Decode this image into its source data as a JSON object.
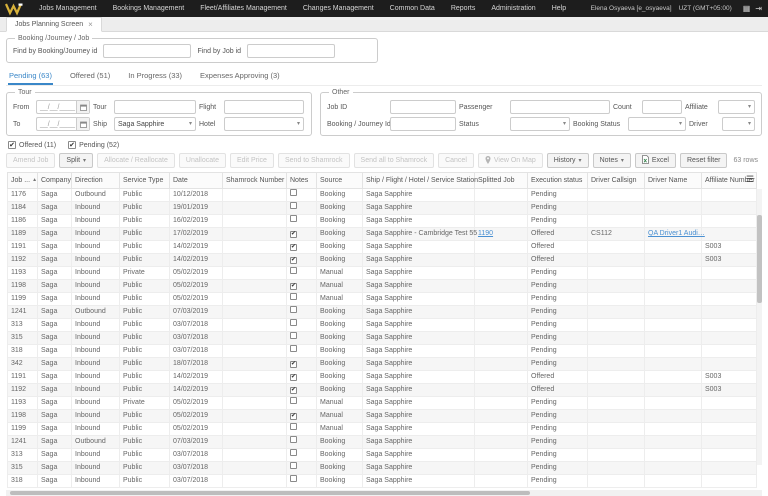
{
  "colors": {
    "topbar": "#1d1d1d",
    "accent_blue": "#3a87c8",
    "link_blue": "#4a90d2",
    "logo_gold": "#d8b23a"
  },
  "topnav": {
    "menu": [
      "Jobs Management",
      "Bookings Management",
      "Fleet/Affiliates Management",
      "Changes Management",
      "Common Data",
      "Reports",
      "Administration",
      "Help"
    ],
    "user": "Elena Osyaeva [e_osyaeva]",
    "timezone": "UZT (GMT+05:00)"
  },
  "tab_bar": {
    "active_tab": "Jobs Planning Screen",
    "close_glyph": "×"
  },
  "search_box": {
    "legend": "Booking /Journey / Job",
    "booking_label": "Find by Booking/Journey id",
    "job_label": "Find by Job id",
    "booking_value": "",
    "job_value": ""
  },
  "status_tabs": [
    {
      "label": "Pending (63)",
      "active": true
    },
    {
      "label": "Offered (51)",
      "active": false
    },
    {
      "label": "In Progress (33)",
      "active": false
    },
    {
      "label": "Expenses Approving (3)",
      "active": false
    }
  ],
  "tour_filter": {
    "legend": "Tour",
    "from_label": "From",
    "to_label": "To",
    "date_placeholder": "__/__/____",
    "from_value": "",
    "to_value": "",
    "tour_label": "Tour",
    "tour_value": "",
    "flight_label": "Flight",
    "flight_value": "",
    "ship_label": "Ship",
    "ship_value": "Saga Sapphire",
    "hotel_label": "Hotel",
    "hotel_value": ""
  },
  "other_filter": {
    "legend": "Other",
    "job_id_label": "Job ID",
    "job_id_value": "",
    "passenger_label": "Passenger",
    "passenger_value": "",
    "count_label": "Count",
    "count_value": "",
    "affiliate_label": "Affiliate",
    "affiliate_value": "",
    "booking_journey_label": "Booking / Journey Id",
    "booking_journey_value": "",
    "status_label": "Status",
    "status_value": "",
    "booking_status_label": "Booking Status",
    "booking_status_value": "",
    "driver_label": "Driver",
    "driver_value": ""
  },
  "filter_checkboxes": [
    {
      "label": "Offered (11)",
      "checked": true
    },
    {
      "label": "Pending (52)",
      "checked": true
    }
  ],
  "toolbar": {
    "buttons": [
      {
        "label": "Amend Job",
        "enabled": false
      },
      {
        "label": "Split",
        "enabled": true,
        "caret": true
      },
      {
        "label": "Allocate / Reallocate",
        "enabled": false
      },
      {
        "label": "Unallocate",
        "enabled": false
      },
      {
        "label": "Edit Price",
        "enabled": false
      },
      {
        "label": "Send to Shamrock",
        "enabled": false
      },
      {
        "label": "Send all to Shamrock",
        "enabled": false
      },
      {
        "label": "Cancel",
        "enabled": false
      },
      {
        "label": "View On Map",
        "enabled": false,
        "icon": "pin"
      },
      {
        "label": "History",
        "enabled": true,
        "caret": true
      },
      {
        "label": "Notes",
        "enabled": true,
        "caret": true
      },
      {
        "label": "Excel",
        "enabled": true,
        "icon": "excel"
      },
      {
        "label": "Reset filter",
        "enabled": true
      }
    ],
    "rows_count": "63 rows"
  },
  "table": {
    "columns": [
      "Job ...",
      "Company",
      "Direction",
      "Service Type",
      "Date",
      "Shamrock Number",
      "Notes",
      "Source",
      "Ship / Flight / Hotel / Service Station",
      "Splitted Job",
      "Execution status",
      "Driver Callsign",
      "Driver Name",
      "Affiliate Number"
    ],
    "sort_column": 0,
    "sort_dir": "asc",
    "rows": [
      [
        "1176",
        "Saga",
        "Outbound",
        "Public",
        "10/12/2018",
        "",
        false,
        "Booking",
        "Saga Sapphire",
        "",
        "Pending",
        "",
        "",
        ""
      ],
      [
        "1184",
        "Saga",
        "Inbound",
        "Public",
        "19/01/2019",
        "",
        false,
        "Booking",
        "Saga Sapphire",
        "",
        "Pending",
        "",
        "",
        ""
      ],
      [
        "1186",
        "Saga",
        "Inbound",
        "Public",
        "16/02/2019",
        "",
        false,
        "Booking",
        "Saga Sapphire",
        "",
        "Pending",
        "",
        "",
        ""
      ],
      [
        "1189",
        "Saga",
        "Inbound",
        "Public",
        "17/02/2019",
        "",
        true,
        "Booking",
        "Saga Sapphire - Cambridge Test 55",
        "1190",
        "Offered",
        "CS112",
        "QA Driver1 Audi…",
        ""
      ],
      [
        "1191",
        "Saga",
        "Inbound",
        "Public",
        "14/02/2019",
        "",
        true,
        "Booking",
        "Saga Sapphire",
        "",
        "Offered",
        "",
        "",
        "S003"
      ],
      [
        "1192",
        "Saga",
        "Inbound",
        "Public",
        "14/02/2019",
        "",
        true,
        "Booking",
        "Saga Sapphire",
        "",
        "Offered",
        "",
        "",
        "S003"
      ],
      [
        "1193",
        "Saga",
        "Inbound",
        "Private",
        "05/02/2019",
        "",
        false,
        "Manual",
        "Saga Sapphire",
        "",
        "Pending",
        "",
        "",
        ""
      ],
      [
        "1198",
        "Saga",
        "Inbound",
        "Public",
        "05/02/2019",
        "",
        true,
        "Manual",
        "Saga Sapphire",
        "",
        "Pending",
        "",
        "",
        ""
      ],
      [
        "1199",
        "Saga",
        "Inbound",
        "Public",
        "05/02/2019",
        "",
        false,
        "Manual",
        "Saga Sapphire",
        "",
        "Pending",
        "",
        "",
        ""
      ],
      [
        "1241",
        "Saga",
        "Outbound",
        "Public",
        "07/03/2019",
        "",
        false,
        "Booking",
        "Saga Sapphire",
        "",
        "Pending",
        "",
        "",
        ""
      ],
      [
        "313",
        "Saga",
        "Inbound",
        "Public",
        "03/07/2018",
        "",
        false,
        "Booking",
        "Saga Sapphire",
        "",
        "Pending",
        "",
        "",
        ""
      ],
      [
        "315",
        "Saga",
        "Inbound",
        "Public",
        "03/07/2018",
        "",
        false,
        "Booking",
        "Saga Sapphire",
        "",
        "Pending",
        "",
        "",
        ""
      ],
      [
        "318",
        "Saga",
        "Inbound",
        "Public",
        "03/07/2018",
        "",
        false,
        "Booking",
        "Saga Sapphire",
        "",
        "Pending",
        "",
        "",
        ""
      ],
      [
        "342",
        "Saga",
        "Inbound",
        "Public",
        "18/07/2018",
        "",
        true,
        "Booking",
        "Saga Sapphire",
        "",
        "Pending",
        "",
        "",
        ""
      ],
      [
        "1191",
        "Saga",
        "Inbound",
        "Public",
        "14/02/2019",
        "",
        true,
        "Booking",
        "Saga Sapphire",
        "",
        "Offered",
        "",
        "",
        "S003"
      ],
      [
        "1192",
        "Saga",
        "Inbound",
        "Public",
        "14/02/2019",
        "",
        true,
        "Booking",
        "Saga Sapphire",
        "",
        "Offered",
        "",
        "",
        "S003"
      ],
      [
        "1193",
        "Saga",
        "Inbound",
        "Private",
        "05/02/2019",
        "",
        false,
        "Manual",
        "Saga Sapphire",
        "",
        "Pending",
        "",
        "",
        ""
      ],
      [
        "1198",
        "Saga",
        "Inbound",
        "Public",
        "05/02/2019",
        "",
        true,
        "Manual",
        "Saga Sapphire",
        "",
        "Pending",
        "",
        "",
        ""
      ],
      [
        "1199",
        "Saga",
        "Inbound",
        "Public",
        "05/02/2019",
        "",
        false,
        "Manual",
        "Saga Sapphire",
        "",
        "Pending",
        "",
        "",
        ""
      ],
      [
        "1241",
        "Saga",
        "Outbound",
        "Public",
        "07/03/2019",
        "",
        false,
        "Booking",
        "Saga Sapphire",
        "",
        "Pending",
        "",
        "",
        ""
      ],
      [
        "313",
        "Saga",
        "Inbound",
        "Public",
        "03/07/2018",
        "",
        false,
        "Booking",
        "Saga Sapphire",
        "",
        "Pending",
        "",
        "",
        ""
      ],
      [
        "315",
        "Saga",
        "Inbound",
        "Public",
        "03/07/2018",
        "",
        false,
        "Booking",
        "Saga Sapphire",
        "",
        "Pending",
        "",
        "",
        ""
      ],
      [
        "318",
        "Saga",
        "Inbound",
        "Public",
        "03/07/2018",
        "",
        false,
        "Booking",
        "Saga Sapphire",
        "",
        "Pending",
        "",
        "",
        ""
      ]
    ]
  }
}
